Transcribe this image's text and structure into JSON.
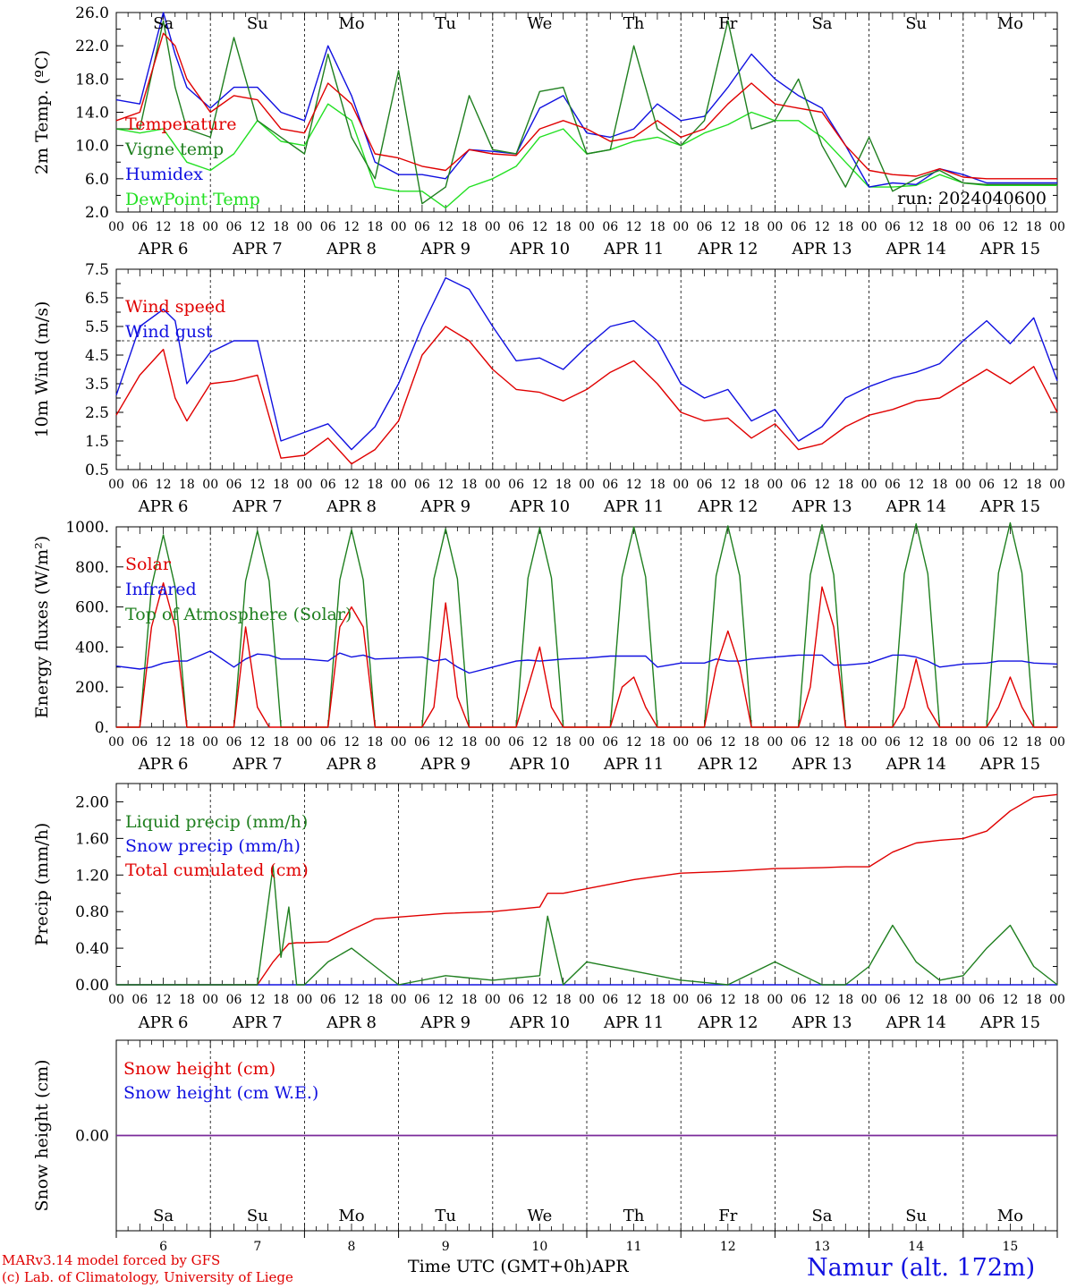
{
  "footer": {
    "credit_line1": "MARv3.14 model forced by GFS",
    "credit_line2": "(c) Lab. of Climatology, University of Liege",
    "xaxis_title": "Time UTC (GMT+0h)",
    "month": "APR",
    "station": "Namur (alt. 172m)"
  },
  "colors": {
    "red": "#e00000",
    "green": "#1f7f1f",
    "blue": "#1010e0",
    "lightgreen": "#22e022",
    "purple": "#7a2a9a"
  },
  "time_axis": {
    "hour_ticks": [
      "00",
      "06",
      "12",
      "18"
    ],
    "day_labels": [
      "APR   6",
      "APR   7",
      "APR   8",
      "APR   9",
      "APR  10",
      "APR  11",
      "APR  12",
      "APR  13",
      "APR  14",
      "APR  15"
    ],
    "weekdays": [
      "Sa",
      "Su",
      "Mo",
      "Tu",
      "We",
      "Th",
      "Fr",
      "Sa",
      "Su",
      "Mo"
    ],
    "weekday_colors": [
      "red",
      "red",
      "black",
      "black",
      "black",
      "black",
      "black",
      "red",
      "red",
      "black"
    ],
    "day_numbers": [
      "6",
      "7",
      "8",
      "9",
      "10",
      "11",
      "12",
      "13",
      "14",
      "15"
    ]
  },
  "chart_data": [
    {
      "type": "line",
      "ylabel": "2m Temp. (ºC)",
      "ylim": [
        2.0,
        26.0
      ],
      "yticks": [
        "2.0",
        "6.0",
        "10.0",
        "14.0",
        "18.0",
        "22.0",
        "26.0"
      ],
      "annotation": "run: 2024040600",
      "x_hours_from_apr6_00utc": [
        0,
        6,
        12,
        15,
        18,
        24,
        30,
        36,
        42,
        48,
        54,
        60,
        66,
        72,
        78,
        84,
        90,
        96,
        102,
        108,
        114,
        120,
        126,
        132,
        138,
        144,
        150,
        156,
        162,
        168,
        174,
        180,
        186,
        192,
        198,
        204,
        210,
        216,
        222,
        228,
        234,
        240
      ],
      "series": [
        {
          "name": "Temperature",
          "color": "red",
          "values": [
            13,
            14,
            23.5,
            22,
            18,
            14,
            16,
            15.5,
            12,
            11.5,
            17.5,
            15,
            9,
            8.5,
            7.5,
            7,
            9.5,
            9,
            8.8,
            12,
            13,
            12,
            10.5,
            11,
            13,
            11,
            12,
            15,
            17.5,
            15,
            14.5,
            14,
            10,
            7,
            6.5,
            6.3,
            7.2,
            6.2,
            6,
            6,
            6,
            6
          ]
        },
        {
          "name": "Vigne temp",
          "color": "green",
          "values": [
            12,
            12,
            25,
            17,
            12,
            11,
            23,
            13,
            11,
            9,
            21,
            11,
            6,
            19,
            3,
            5,
            16,
            9.5,
            9,
            16.5,
            17,
            9,
            9.5,
            22,
            12,
            10,
            13,
            25,
            12,
            13,
            18,
            10,
            5,
            11,
            4.5,
            6,
            7,
            5.5,
            5.3,
            5.3,
            5.3,
            5.3
          ]
        },
        {
          "name": "Humidex",
          "color": "blue",
          "values": [
            15.5,
            15,
            26,
            21,
            17,
            14.5,
            17,
            17,
            14,
            13,
            22,
            16,
            8,
            6.5,
            6.5,
            6,
            9.5,
            9.3,
            9,
            14.5,
            16,
            11.5,
            11,
            12,
            15,
            13,
            13.5,
            17,
            21,
            18,
            16,
            14.5,
            10,
            5,
            5.5,
            5.3,
            7.2,
            6.5,
            5.5,
            5.5,
            5.5,
            5.5
          ]
        },
        {
          "name": "DewPoint Temp",
          "color": "lightgreen",
          "values": [
            12,
            11.5,
            12,
            10,
            8,
            7,
            9,
            13,
            10.5,
            10,
            15,
            13,
            5,
            4.5,
            4.5,
            2.5,
            5,
            6,
            7.5,
            11,
            12,
            9,
            9.5,
            10.5,
            11,
            10,
            11.5,
            12.5,
            14,
            13,
            13,
            11,
            8,
            5,
            5,
            5.2,
            6.5,
            5.5,
            5.2,
            5.2,
            5.2,
            5.2
          ]
        }
      ]
    },
    {
      "type": "line",
      "ylabel": "10m Wind (m/s)",
      "ylim": [
        0.5,
        7.5
      ],
      "yticks": [
        "0.5",
        "1.5",
        "2.5",
        "3.5",
        "4.5",
        "5.5",
        "6.5",
        "7.5"
      ],
      "reference_line": 5.0,
      "x_hours_from_apr6_00utc": [
        0,
        6,
        12,
        15,
        18,
        24,
        30,
        36,
        42,
        48,
        54,
        60,
        66,
        72,
        78,
        84,
        90,
        96,
        102,
        108,
        114,
        120,
        126,
        132,
        138,
        144,
        150,
        156,
        162,
        168,
        174,
        180,
        186,
        192,
        198,
        204,
        210,
        216,
        222,
        228,
        234,
        240
      ],
      "series": [
        {
          "name": "Wind speed",
          "color": "red",
          "values": [
            2.4,
            3.8,
            4.7,
            3.0,
            2.2,
            3.5,
            3.6,
            3.8,
            0.9,
            1.0,
            1.6,
            0.7,
            1.2,
            2.2,
            4.5,
            5.5,
            5.0,
            4.0,
            3.3,
            3.2,
            2.9,
            3.3,
            3.9,
            4.3,
            3.5,
            2.5,
            2.2,
            2.3,
            1.6,
            2.1,
            1.2,
            1.4,
            2.0,
            2.4,
            2.6,
            2.9,
            3.0,
            3.5,
            4.0,
            3.5,
            4.1,
            2.5
          ]
        },
        {
          "name": "Wind gust",
          "color": "blue",
          "values": [
            3.1,
            5.5,
            6.1,
            5.7,
            3.5,
            4.6,
            5.0,
            5.0,
            1.5,
            1.8,
            2.1,
            1.2,
            2.0,
            3.5,
            5.5,
            7.2,
            6.8,
            5.5,
            4.3,
            4.4,
            4.0,
            4.8,
            5.5,
            5.7,
            5.0,
            3.5,
            3.0,
            3.3,
            2.2,
            2.6,
            1.5,
            2.0,
            3.0,
            3.4,
            3.7,
            3.9,
            4.2,
            5.0,
            5.7,
            4.9,
            5.8,
            3.6
          ]
        }
      ]
    },
    {
      "type": "line",
      "ylabel": "Energy fluxes (W/m²)",
      "ylim": [
        0,
        1000
      ],
      "yticks": [
        "0.",
        "200.",
        "400.",
        "600.",
        "800.",
        "1000."
      ],
      "x_hours_from_apr6_00utc": [
        0,
        6,
        9,
        12,
        15,
        18,
        24,
        30,
        33,
        36,
        39,
        42,
        48,
        54,
        57,
        60,
        63,
        66,
        72,
        78,
        81,
        84,
        87,
        90,
        96,
        102,
        105,
        108,
        111,
        114,
        120,
        126,
        129,
        132,
        135,
        138,
        144,
        150,
        153,
        156,
        159,
        162,
        168,
        174,
        177,
        180,
        183,
        186,
        192,
        198,
        201,
        204,
        207,
        210,
        216,
        222,
        225,
        228,
        231,
        234,
        240
      ],
      "series": [
        {
          "name": "Solar",
          "color": "red",
          "values": [
            0,
            0,
            500,
            720,
            500,
            0,
            0,
            0,
            500,
            100,
            0,
            0,
            0,
            0,
            500,
            600,
            500,
            0,
            0,
            0,
            100,
            620,
            150,
            0,
            0,
            0,
            200,
            400,
            100,
            0,
            0,
            0,
            200,
            250,
            100,
            0,
            0,
            0,
            300,
            480,
            300,
            0,
            0,
            0,
            200,
            700,
            500,
            0,
            0,
            0,
            100,
            340,
            100,
            0,
            0,
            0,
            100,
            250,
            100,
            0,
            0
          ]
        },
        {
          "name": "Infrared",
          "color": "blue",
          "values": [
            305,
            290,
            300,
            320,
            330,
            330,
            380,
            300,
            340,
            365,
            360,
            340,
            340,
            330,
            370,
            350,
            360,
            340,
            345,
            350,
            330,
            340,
            300,
            270,
            300,
            330,
            335,
            330,
            335,
            340,
            345,
            355,
            355,
            355,
            355,
            300,
            320,
            320,
            340,
            330,
            330,
            340,
            350,
            360,
            360,
            360,
            310,
            310,
            320,
            360,
            360,
            350,
            330,
            300,
            315,
            320,
            330,
            330,
            330,
            320,
            315
          ]
        },
        {
          "name": "Top of Atmosphere (Solar)",
          "color": "green",
          "values": [
            0,
            0,
            700,
            960,
            700,
            0,
            0,
            0,
            730,
            980,
            730,
            0,
            0,
            0,
            735,
            985,
            735,
            0,
            0,
            0,
            740,
            990,
            740,
            0,
            0,
            0,
            745,
            995,
            745,
            0,
            0,
            0,
            750,
            1000,
            750,
            0,
            0,
            0,
            755,
            1005,
            755,
            0,
            0,
            0,
            760,
            1010,
            760,
            0,
            0,
            0,
            765,
            1015,
            765,
            0,
            0,
            0,
            770,
            1020,
            770,
            0,
            0
          ]
        }
      ]
    },
    {
      "type": "line",
      "ylabel": "Precip (mm/h)",
      "ylim": [
        0,
        2.2
      ],
      "yticks": [
        "0.00",
        "0.40",
        "0.80",
        "1.20",
        "1.60",
        "2.00"
      ],
      "x_hours_from_apr6_00utc": [
        0,
        12,
        24,
        36,
        40,
        42,
        44,
        46,
        48,
        54,
        60,
        66,
        72,
        84,
        96,
        108,
        110,
        114,
        120,
        132,
        144,
        156,
        168,
        180,
        186,
        192,
        198,
        204,
        210,
        216,
        222,
        228,
        234,
        240
      ],
      "series": [
        {
          "name": "Liquid precip (mm/h)",
          "color": "green",
          "values": [
            0,
            0,
            0,
            0,
            1.3,
            0.3,
            0.85,
            0,
            0,
            0.25,
            0.4,
            0.2,
            0,
            0.1,
            0.05,
            0.1,
            0.75,
            0,
            0.25,
            0.15,
            0.05,
            0,
            0.25,
            0,
            0,
            0.2,
            0.65,
            0.25,
            0.05,
            0.1,
            0.4,
            0.65,
            0.2,
            0
          ]
        },
        {
          "name": "Snow precip (mm/h)",
          "color": "blue",
          "values": [
            0,
            0,
            0,
            0,
            0,
            0,
            0,
            0,
            0,
            0,
            0,
            0,
            0,
            0,
            0,
            0,
            0,
            0,
            0,
            0,
            0,
            0,
            0,
            0,
            0,
            0,
            0,
            0,
            0,
            0,
            0,
            0,
            0,
            0
          ]
        },
        {
          "name": "Total cumulated (cm)",
          "color": "red",
          "values": [
            0,
            0,
            0,
            0,
            0.25,
            0.35,
            0.45,
            0.46,
            0.46,
            0.47,
            0.6,
            0.72,
            0.74,
            0.78,
            0.8,
            0.85,
            1.0,
            1.0,
            1.05,
            1.15,
            1.22,
            1.24,
            1.27,
            1.28,
            1.29,
            1.29,
            1.45,
            1.55,
            1.58,
            1.6,
            1.68,
            1.9,
            2.05,
            2.08
          ]
        }
      ]
    },
    {
      "type": "line",
      "ylabel": "Snow height (cm)",
      "ylim": [
        -1,
        1
      ],
      "yticks": [
        "0.00"
      ],
      "x_hours_from_apr6_00utc": [
        0,
        240
      ],
      "series": [
        {
          "name": "Snow height (cm)",
          "color": "red",
          "values": [
            0,
            0
          ]
        },
        {
          "name": "Snow height (cm W.E.)",
          "color": "blue",
          "values": [
            0,
            0
          ]
        }
      ]
    }
  ]
}
